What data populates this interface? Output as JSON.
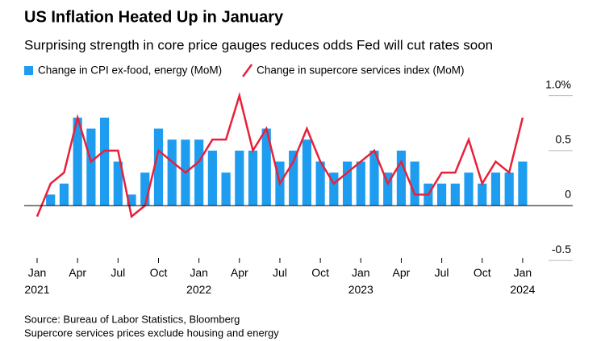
{
  "chart_data": {
    "type": "bar_line",
    "title": "US Inflation Heated Up in January",
    "subtitle": "Surprising strength in core price gauges reduces odds Fed will cut rates soon",
    "categories": [
      "Jan 2021",
      null,
      null,
      "Apr",
      null,
      null,
      "Jul",
      null,
      null,
      "Oct",
      null,
      null,
      "Jan 2022",
      null,
      null,
      "Apr",
      null,
      null,
      "Jul",
      null,
      null,
      "Oct",
      null,
      null,
      "Jan 2023",
      null,
      null,
      "Apr",
      null,
      null,
      "Jul",
      null,
      null,
      "Oct",
      null,
      null,
      "Jan 2024"
    ],
    "series": [
      {
        "name": "Change in CPI ex-food, energy (MoM)",
        "type": "bar",
        "color": "#1e9df0",
        "values": [
          0,
          0.1,
          0.2,
          0.8,
          0.7,
          0.8,
          0.4,
          0.1,
          0.3,
          0.7,
          0.6,
          0.6,
          0.6,
          0.5,
          0.3,
          0.5,
          0.5,
          0.7,
          0.4,
          0.5,
          0.6,
          0.4,
          0.3,
          0.4,
          0.4,
          0.5,
          0.3,
          0.5,
          0.4,
          0.2,
          0.2,
          0.2,
          0.3,
          0.2,
          0.3,
          0.3,
          0.4
        ]
      },
      {
        "name": "Change in supercore services index (MoM)",
        "type": "line",
        "color": "#e8203a",
        "values": [
          -0.1,
          0.2,
          0.3,
          0.8,
          0.4,
          0.5,
          0.5,
          -0.1,
          0.0,
          0.5,
          0.4,
          0.3,
          0.4,
          0.6,
          0.6,
          1.0,
          0.5,
          0.7,
          0.2,
          0.4,
          0.7,
          0.4,
          0.2,
          0.3,
          0.4,
          0.5,
          0.2,
          0.4,
          0.1,
          0.1,
          0.3,
          0.3,
          0.6,
          0.2,
          0.4,
          0.3,
          0.8
        ]
      }
    ],
    "ylim": [
      -0.55,
      1.1
    ],
    "yticks": [
      {
        "value": 1,
        "label": "1.0%"
      },
      0.5,
      0,
      -0.5
    ],
    "source": "Source: Bureau of Labor Statistics, Bloomberg",
    "note": "Supercore services prices exclude housing and energy"
  }
}
